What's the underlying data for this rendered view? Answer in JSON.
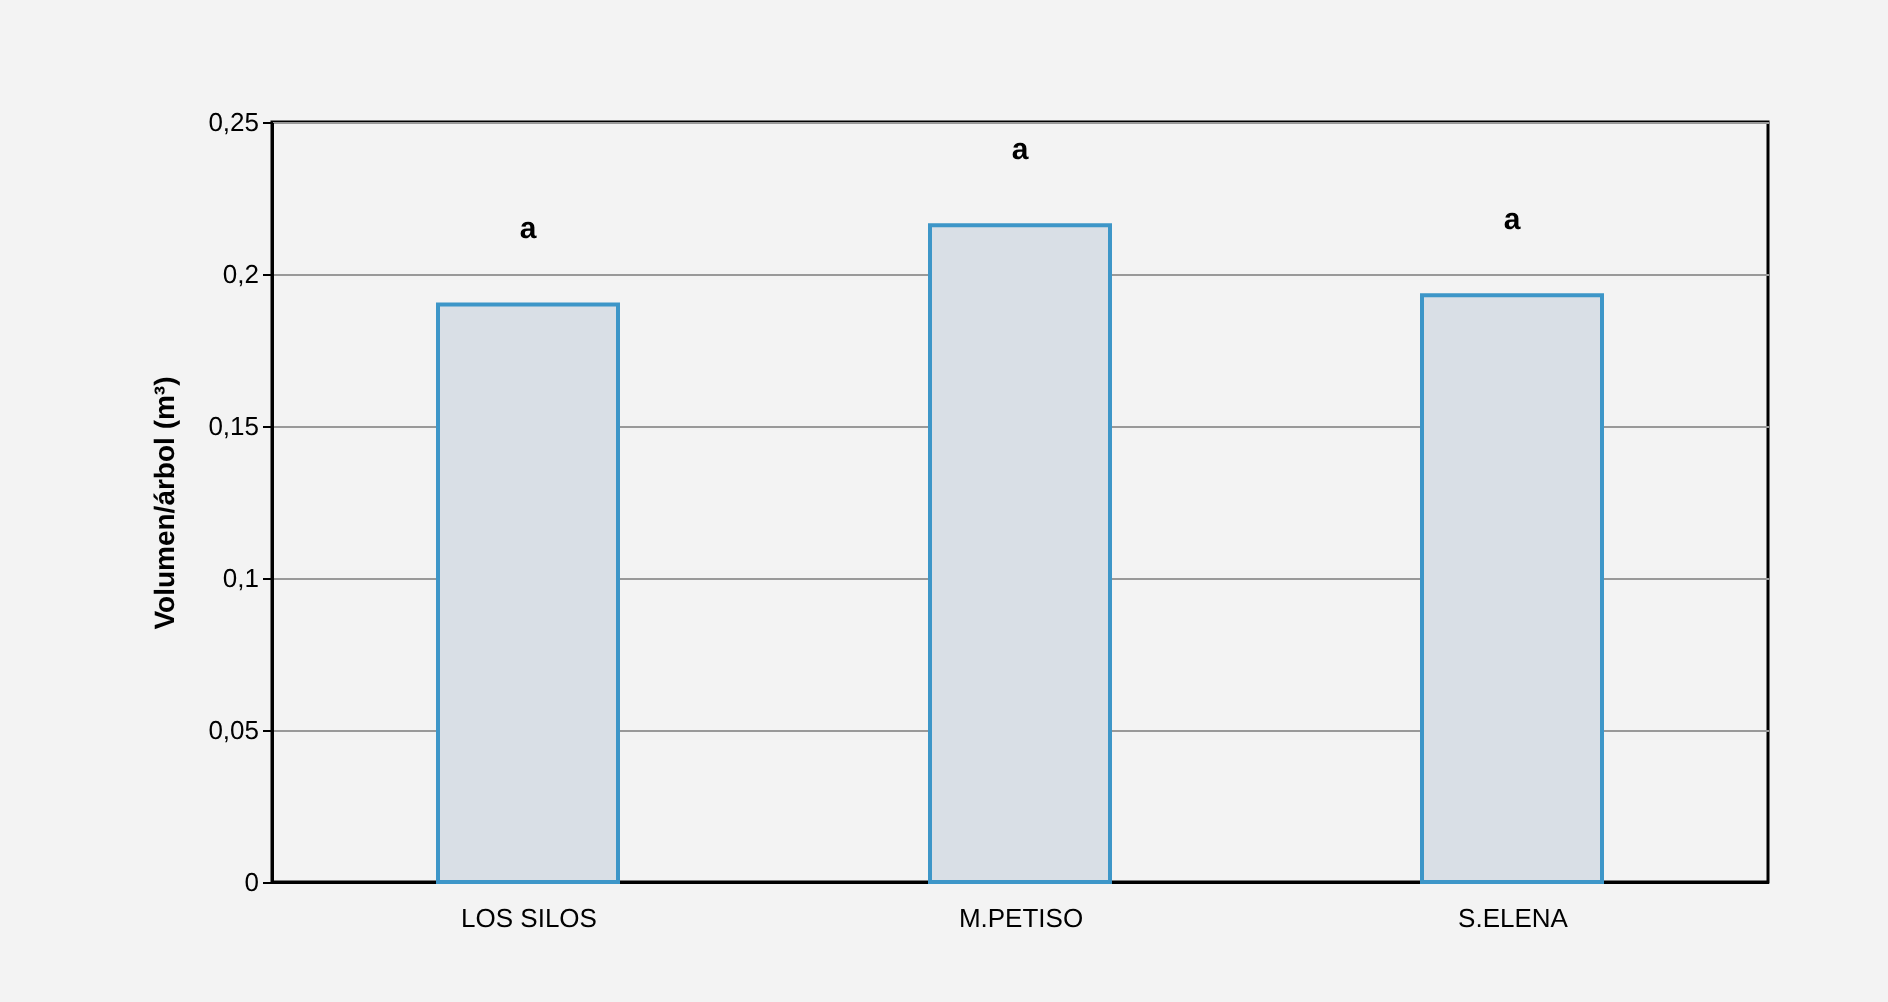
{
  "chart_data": {
    "type": "bar",
    "categories": [
      "LOS SILOS",
      "M.PETISO",
      "S.ELENA"
    ],
    "values": [
      0.19,
      0.216,
      0.193
    ],
    "color": "#d9dfe6",
    "ylabel": "Volumen/árbol (m³)",
    "ylim": [
      0,
      0.25
    ],
    "yticks": [
      0,
      {
        "value": 0.05,
        "label": "0,05"
      },
      {
        "value": 0.1,
        "label": "0,1"
      },
      {
        "value": 0.15,
        "label": "0,15"
      },
      {
        "value": 0.2,
        "label": "0,2"
      },
      {
        "value": 0.25,
        "label": "0,25"
      }
    ],
    "grid": "y",
    "annotations": [
      "a",
      "a",
      "a"
    ]
  }
}
